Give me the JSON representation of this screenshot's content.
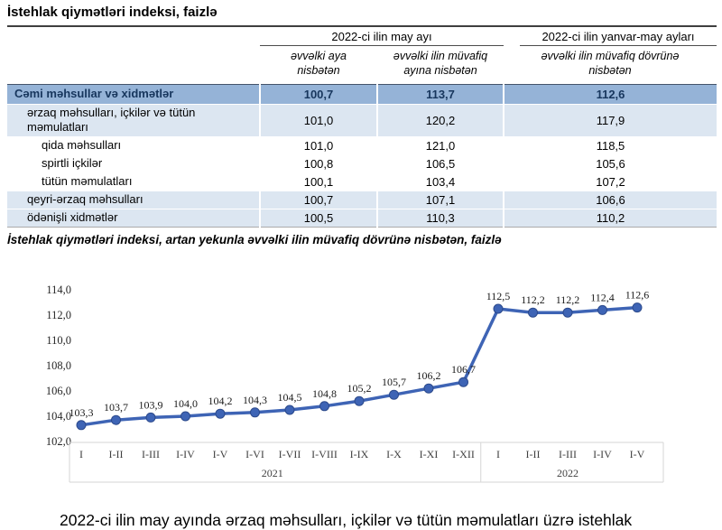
{
  "table": {
    "title": "İstehlak qiymətləri indeksi, faizlə",
    "col_groups": [
      {
        "label": "2022-ci ilin may ayı"
      },
      {
        "label": "2022-ci ilin yanvar-may ayları"
      }
    ],
    "sub_headers": [
      "əvvəlki aya nisbətən",
      "əvvəlki ilin müvafiq ayına nisbətən",
      "əvvəlki ilin müvafiq dövrünə nisbətən"
    ],
    "rows": [
      {
        "label": "Cəmi məhsullar və xidmətlər",
        "values": [
          "100,7",
          "113,7",
          "112,6"
        ],
        "style": "total",
        "indent": 0
      },
      {
        "label": "ərzaq məhsulları, içkilər və tütün məmulatları",
        "values": [
          "101,0",
          "120,2",
          "117,9"
        ],
        "style": "alt",
        "indent": 1
      },
      {
        "label": "qida məhsulları",
        "values": [
          "101,0",
          "121,0",
          "118,5"
        ],
        "style": "plain",
        "indent": 2
      },
      {
        "label": "spirtli içkilər",
        "values": [
          "100,8",
          "106,5",
          "105,6"
        ],
        "style": "plain",
        "indent": 2
      },
      {
        "label": "tütün məmulatları",
        "values": [
          "100,1",
          "103,4",
          "107,2"
        ],
        "style": "plain",
        "indent": 2
      },
      {
        "label": "qeyri-ərzaq məhsulları",
        "values": [
          "100,7",
          "107,1",
          "106,6"
        ],
        "style": "alt",
        "indent": 1
      },
      {
        "label": "ödənişli xidmətlər",
        "values": [
          "100,5",
          "110,3",
          "110,2"
        ],
        "style": "alt",
        "indent": 1
      }
    ]
  },
  "chart": {
    "title": "İstehlak qiymətləri indeksi, artan yekunla əvvəlki ilin müvafiq dövrünə nisbətən, faizlə"
  },
  "chart_data": {
    "type": "line",
    "categories": [
      "I",
      "I-II",
      "I-III",
      "I-IV",
      "I-V",
      "I-VI",
      "I-VII",
      "I-VIII",
      "I-IX",
      "I-X",
      "I-XI",
      "I-XII",
      "I",
      "I-II",
      "I-III",
      "I-IV",
      "I-V"
    ],
    "year_groups": [
      {
        "label": "2021",
        "count": 12
      },
      {
        "label": "2022",
        "count": 5
      }
    ],
    "values": [
      103.3,
      103.7,
      103.9,
      104.0,
      104.2,
      104.3,
      104.5,
      104.8,
      105.2,
      105.7,
      106.2,
      106.7,
      112.5,
      112.2,
      112.2,
      112.4,
      112.6
    ],
    "point_labels": [
      "103,3",
      "103,7",
      "103,9",
      "104,0",
      "104,2",
      "104,3",
      "104,5",
      "104,8",
      "105,2",
      "105,7",
      "106,2",
      "106,7",
      "112,5",
      "112,2",
      "112,2",
      "112,4",
      "112,6"
    ],
    "ylim": [
      102,
      114
    ],
    "ytick_step": 2,
    "ytick_labels": [
      "102,0",
      "104,0",
      "106,0",
      "108,0",
      "110,0",
      "112,0",
      "114,0"
    ],
    "grid": false,
    "legend": false,
    "line_color": "#3E64B5",
    "marker_stroke": "#2C4A8C",
    "axis_line_color": "#d6d6d6"
  },
  "footer": {
    "paragraph": "2022-ci ilin may ayında ərzaq məhsulları, içkilər və tütün məmulatları üzrə istehlak"
  },
  "colors": {
    "total_row_bg": "#95B3D7",
    "alt_row_bg": "#DCE6F1",
    "total_row_text": "#17365D"
  }
}
